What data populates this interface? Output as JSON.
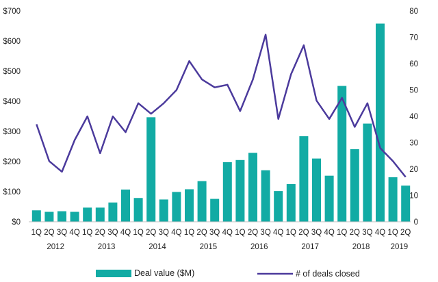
{
  "chart_data": {
    "type": "bar+line",
    "title": "",
    "quarter_labels": [
      "1Q",
      "2Q",
      "3Q",
      "4Q",
      "1Q",
      "2Q",
      "3Q",
      "4Q",
      "1Q",
      "2Q",
      "3Q",
      "4Q",
      "1Q",
      "2Q",
      "3Q",
      "4Q",
      "1Q",
      "2Q",
      "3Q",
      "4Q",
      "1Q",
      "2Q",
      "3Q",
      "4Q",
      "1Q",
      "2Q",
      "3Q",
      "4Q",
      "1Q",
      "2Q"
    ],
    "years": [
      {
        "label": "2012",
        "first_index": 0,
        "count": 4
      },
      {
        "label": "2013",
        "first_index": 4,
        "count": 4
      },
      {
        "label": "2014",
        "first_index": 8,
        "count": 4
      },
      {
        "label": "2015",
        "first_index": 12,
        "count": 4
      },
      {
        "label": "2016",
        "first_index": 16,
        "count": 4
      },
      {
        "label": "2017",
        "first_index": 20,
        "count": 4
      },
      {
        "label": "2018",
        "first_index": 24,
        "count": 4
      },
      {
        "label": "2019",
        "first_index": 28,
        "count": 2
      }
    ],
    "series": [
      {
        "name": "Deal value ($M)",
        "type": "bar",
        "axis": "left",
        "color": "#12ABA4",
        "values": [
          38,
          33,
          35,
          33,
          47,
          47,
          64,
          107,
          79,
          347,
          74,
          99,
          108,
          135,
          76,
          198,
          205,
          229,
          171,
          102,
          125,
          284,
          210,
          153,
          451,
          241,
          326,
          658,
          148,
          120
        ]
      },
      {
        "name": "# of deals closed",
        "type": "line",
        "axis": "right",
        "color": "#4B3A9C",
        "values": [
          37,
          23,
          19,
          31,
          40,
          26,
          40,
          34,
          45,
          41,
          45,
          50,
          61,
          54,
          51,
          52,
          42,
          54,
          71,
          39,
          56,
          67,
          46,
          39,
          47,
          36,
          45,
          28,
          23,
          17
        ]
      }
    ],
    "y_left": {
      "min": 0,
      "max": 700,
      "ticks": [
        0,
        100,
        200,
        300,
        400,
        500,
        600,
        700
      ],
      "tick_labels": [
        "$0",
        "$100",
        "$200",
        "$300",
        "$400",
        "$500",
        "$600",
        "$700"
      ]
    },
    "y_right": {
      "min": 0,
      "max": 80,
      "ticks": [
        0,
        10,
        20,
        30,
        40,
        50,
        60,
        70,
        80
      ],
      "tick_labels": [
        "0",
        "10",
        "20",
        "30",
        "40",
        "50",
        "60",
        "70",
        "80"
      ]
    },
    "legend": {
      "position": "bottom",
      "items": [
        "Deal value ($M)",
        "# of deals closed"
      ]
    },
    "grid": false
  }
}
